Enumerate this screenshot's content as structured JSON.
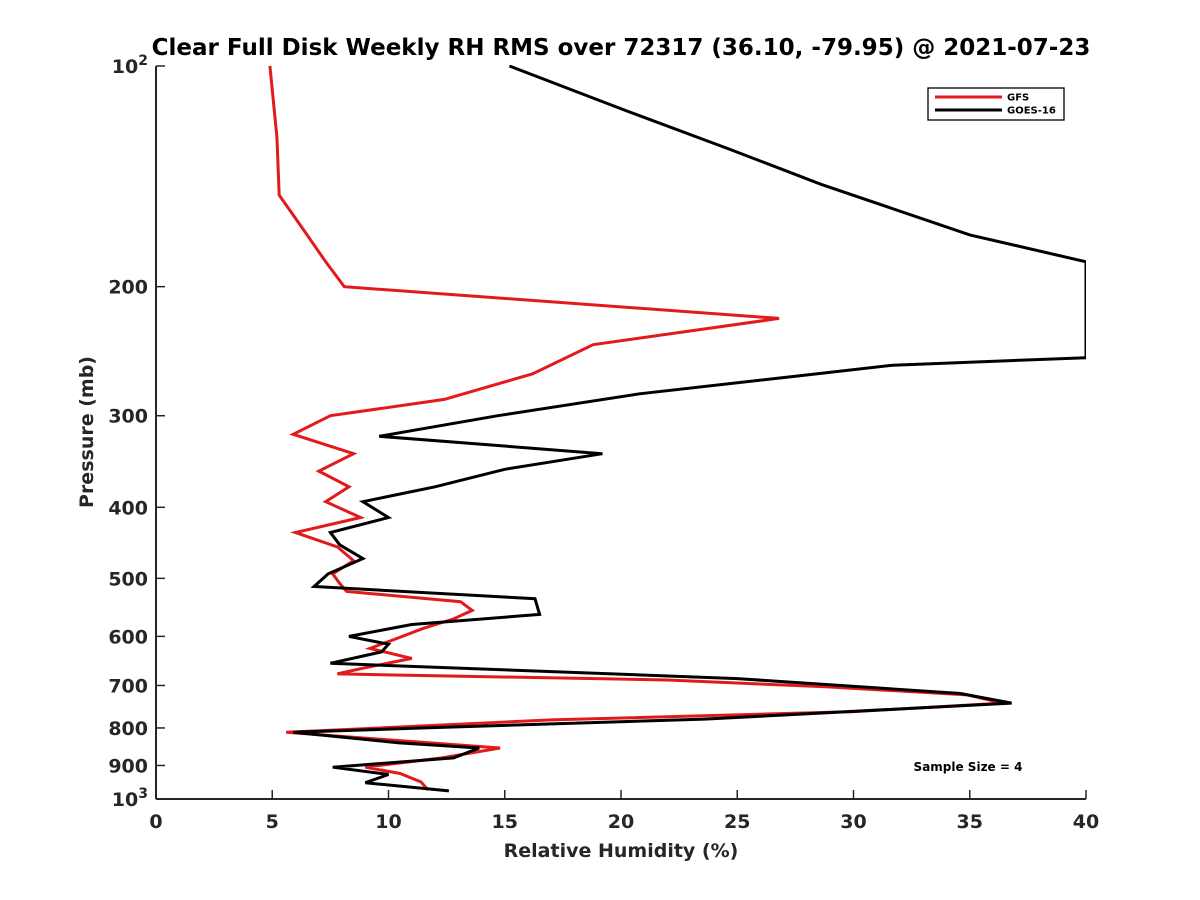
{
  "chart_data": {
    "type": "line",
    "title": "Clear Full Disk Weekly RH RMS over 72317 (36.10, -79.95) @ 2021-07-23",
    "xlabel": "Relative Humidity (%)",
    "ylabel": "Pressure (mb)",
    "xlim": [
      0,
      40
    ],
    "ylim": [
      100,
      1000
    ],
    "yscale": "log",
    "y_reversed": true,
    "x_ticks": [
      "0",
      "5",
      "10",
      "15",
      "20",
      "25",
      "30",
      "35",
      "40"
    ],
    "y_ticks": [
      {
        "value": 100,
        "label": "10",
        "sup": "2"
      },
      {
        "value": 200,
        "label": "200",
        "sup": ""
      },
      {
        "value": 300,
        "label": "300",
        "sup": ""
      },
      {
        "value": 400,
        "label": "400",
        "sup": ""
      },
      {
        "value": 500,
        "label": "500",
        "sup": ""
      },
      {
        "value": 600,
        "label": "600",
        "sup": ""
      },
      {
        "value": 700,
        "label": "700",
        "sup": ""
      },
      {
        "value": 800,
        "label": "800",
        "sup": ""
      },
      {
        "value": 900,
        "label": "900",
        "sup": ""
      },
      {
        "value": 1000,
        "label": "10",
        "sup": "3"
      }
    ],
    "grid": false,
    "legend_position": "top-right",
    "annotation": "Sample Size = 4",
    "series": [
      {
        "name": "GFS",
        "color": "#e31a1c",
        "points": [
          [
            4.9,
            100
          ],
          [
            5.2,
            125
          ],
          [
            5.3,
            150
          ],
          [
            6.5,
            170
          ],
          [
            7.3,
            185
          ],
          [
            8.1,
            200
          ],
          [
            26.8,
            221
          ],
          [
            18.8,
            240
          ],
          [
            16.2,
            263
          ],
          [
            12.4,
            285
          ],
          [
            7.5,
            300
          ],
          [
            5.9,
            318
          ],
          [
            8.5,
            338
          ],
          [
            7.0,
            357
          ],
          [
            8.3,
            375
          ],
          [
            7.3,
            393
          ],
          [
            8.8,
            413
          ],
          [
            6.0,
            433
          ],
          [
            7.8,
            453
          ],
          [
            8.5,
            473
          ],
          [
            7.6,
            493
          ],
          [
            7.9,
            508
          ],
          [
            8.2,
            521
          ],
          [
            13.1,
            538
          ],
          [
            13.6,
            553
          ],
          [
            12.8,
            568
          ],
          [
            11.5,
            585
          ],
          [
            10.3,
            605
          ],
          [
            9.2,
            623
          ],
          [
            11.0,
            643
          ],
          [
            8.9,
            663
          ],
          [
            7.8,
            675
          ],
          [
            22.0,
            688
          ],
          [
            28.8,
            703
          ],
          [
            34.9,
            721
          ],
          [
            36.4,
            740
          ],
          [
            30.0,
            760
          ],
          [
            17.0,
            780
          ],
          [
            5.6,
            811
          ],
          [
            14.8,
            852
          ],
          [
            12.3,
            879
          ],
          [
            9.0,
            905
          ],
          [
            10.5,
            923
          ],
          [
            11.4,
            948
          ],
          [
            11.7,
            972
          ]
        ]
      },
      {
        "name": "GOES-16",
        "color": "#000000",
        "points": [
          [
            15.2,
            100
          ],
          [
            20.2,
            115
          ],
          [
            24.7,
            130
          ],
          [
            28.6,
            145
          ],
          [
            35.0,
            170
          ],
          [
            40.0,
            185
          ],
          [
            40.0,
            250
          ],
          [
            31.7,
            256
          ],
          [
            27.5,
            265
          ],
          [
            20.8,
            280
          ],
          [
            14.7,
            300
          ],
          [
            9.6,
            320
          ],
          [
            19.2,
            338
          ],
          [
            15.0,
            355
          ],
          [
            12.0,
            375
          ],
          [
            8.9,
            393
          ],
          [
            10.0,
            413
          ],
          [
            7.5,
            433
          ],
          [
            7.9,
            450
          ],
          [
            8.9,
            470
          ],
          [
            7.4,
            493
          ],
          [
            6.8,
            513
          ],
          [
            16.3,
            533
          ],
          [
            16.5,
            560
          ],
          [
            11.0,
            578
          ],
          [
            8.3,
            600
          ],
          [
            10.0,
            615
          ],
          [
            9.7,
            630
          ],
          [
            7.5,
            653
          ],
          [
            25.0,
            685
          ],
          [
            34.6,
            718
          ],
          [
            36.8,
            740
          ],
          [
            23.6,
            778
          ],
          [
            11.4,
            800
          ],
          [
            5.9,
            811
          ],
          [
            10.4,
            838
          ],
          [
            13.9,
            852
          ],
          [
            12.8,
            879
          ],
          [
            7.6,
            905
          ],
          [
            10.0,
            926
          ],
          [
            9.0,
            950
          ],
          [
            12.6,
            975
          ]
        ]
      }
    ]
  }
}
